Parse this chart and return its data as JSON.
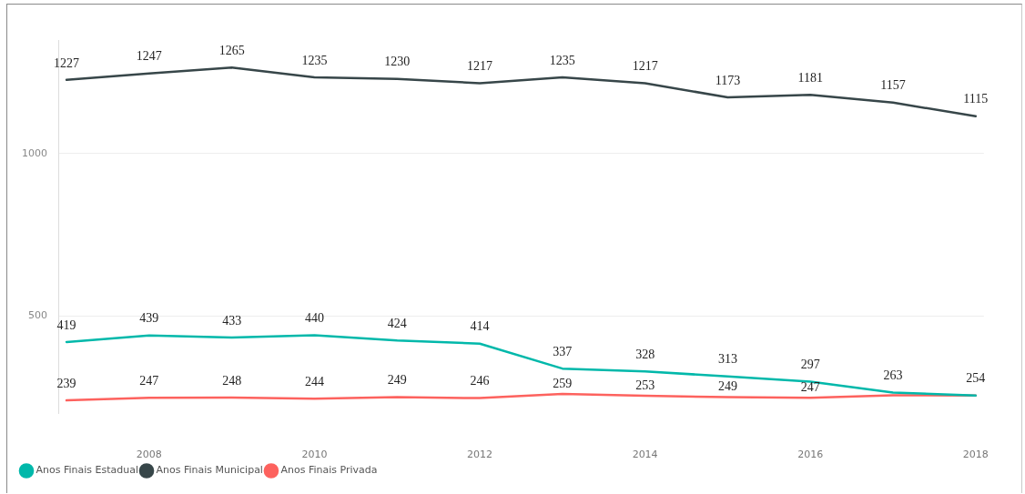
{
  "chart_data": {
    "type": "line",
    "x": [
      2007,
      2008,
      2009,
      2010,
      2011,
      2012,
      2013,
      2014,
      2015,
      2016,
      2017,
      2018
    ],
    "xlim": [
      2006.9,
      2018.1
    ],
    "xticks": [
      2008,
      2010,
      2012,
      2014,
      2016,
      2018
    ],
    "ylim": [
      200,
      1350
    ],
    "yticks": [
      500,
      1000
    ],
    "grid": "y",
    "legend": "bottom left",
    "marker": "none",
    "series": [
      {
        "name": "Anos Finais Estadual",
        "color": "#01b8aa",
        "values": [
          419,
          439,
          433,
          440,
          424,
          414,
          337,
          328,
          313,
          297,
          263,
          254
        ],
        "value_labels": [
          "419",
          "439",
          "433",
          "440",
          "424",
          "414",
          "337",
          "328",
          "313",
          "297",
          "263",
          "254"
        ]
      },
      {
        "name": "Anos Finais Municipal",
        "color": "#374649",
        "values": [
          1227,
          1247,
          1265,
          1235,
          1230,
          1217,
          1235,
          1217,
          1173,
          1181,
          1157,
          1115
        ],
        "value_labels": [
          "1227",
          "1247",
          "1265",
          "1235",
          "1230",
          "1217",
          "1235",
          "1217",
          "1173",
          "1181",
          "1157",
          "1115"
        ]
      },
      {
        "name": "Anos Finais Privada",
        "color": "#fd625e",
        "values": [
          239,
          247,
          248,
          244,
          249,
          246,
          259,
          253,
          249,
          247,
          255,
          254
        ],
        "value_labels": [
          "239",
          "247",
          "248",
          "244",
          "249",
          "246",
          "259",
          "253",
          "249",
          "247",
          null,
          null
        ]
      }
    ]
  }
}
